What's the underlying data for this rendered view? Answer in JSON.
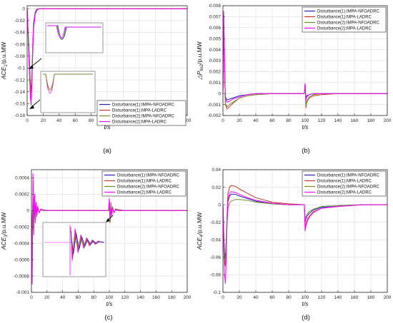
{
  "chart_data": [
    {
      "type": "line",
      "panel_label": "(a)",
      "xlabel": "t/s",
      "ylabel": "ACE",
      "ylabel_sub": "1",
      "ylabel_unit": "/p.u.MW",
      "xlim": [
        0,
        200
      ],
      "ylim": [
        -0.18,
        0.005
      ],
      "xticks": [
        0,
        20,
        40,
        60,
        80,
        100,
        120,
        140,
        160,
        180,
        200
      ],
      "xtick_labels": [
        "0",
        "20",
        "40",
        "60",
        "80",
        "100",
        "120",
        "140",
        "160",
        "180",
        "200"
      ],
      "yticks": [
        0,
        -0.02,
        -0.04,
        -0.06,
        -0.08,
        -0.1,
        -0.12,
        -0.14,
        -0.16,
        -0.18
      ],
      "ytick_labels": [
        "0",
        "-0.02",
        "-0.04",
        "-0.06",
        "-0.08",
        "-0.1",
        "-0.12",
        "-0.14",
        "-0.16",
        "-0.18"
      ],
      "grid": true,
      "legend_position": "bottom-right",
      "series": [
        {
          "name": "Disturbance(1):IMPA-NFOADRC",
          "color": "#1f1fbf",
          "x": [
            0,
            2,
            4,
            5,
            6,
            7,
            8,
            10,
            12,
            15,
            20,
            40,
            60,
            100,
            150,
            200
          ],
          "y": [
            0,
            -0.06,
            -0.125,
            -0.14,
            -0.11,
            -0.06,
            -0.025,
            -0.006,
            -0.001,
            0,
            0,
            0,
            0,
            0,
            0,
            0
          ]
        },
        {
          "name": "Disturbance(1):MPA-LADRC",
          "color": "#c23b22",
          "x": [
            0,
            2,
            4,
            5,
            6,
            7,
            8,
            10,
            12,
            15,
            20,
            40,
            60,
            100,
            150,
            200
          ],
          "y": [
            0,
            -0.065,
            -0.13,
            -0.145,
            -0.115,
            -0.065,
            -0.03,
            -0.008,
            -0.002,
            0,
            0,
            0,
            0,
            0,
            0,
            0
          ]
        },
        {
          "name": "Disturbance(2):IMPA-NFOADRC",
          "color": "#6b8e23",
          "x": [
            0,
            2,
            4,
            5,
            6,
            7,
            8,
            10,
            12,
            15,
            20,
            40,
            60,
            100,
            150,
            200
          ],
          "y": [
            0,
            -0.07,
            -0.14,
            -0.155,
            -0.12,
            -0.07,
            -0.032,
            -0.009,
            -0.002,
            0,
            0,
            0,
            0,
            0,
            0,
            0
          ]
        },
        {
          "name": "Disturbance(2):MPA-LADRC",
          "color": "#ff00ff",
          "x": [
            0,
            2,
            4,
            5,
            6,
            7,
            8,
            10,
            12,
            15,
            20,
            40,
            60,
            100,
            150,
            200
          ],
          "y": [
            0,
            -0.075,
            -0.15,
            -0.163,
            -0.125,
            -0.075,
            -0.035,
            -0.01,
            -0.003,
            0,
            0,
            0,
            0,
            0,
            0,
            0
          ]
        }
      ]
    },
    {
      "type": "line",
      "panel_label": "(b)",
      "xlabel": "t/s",
      "ylabel": "△P",
      "ylabel_sub": "tie2",
      "ylabel_unit": "/p.u.MW",
      "xlim": [
        0,
        200
      ],
      "ylim": [
        -0.002,
        0.008
      ],
      "xticks": [
        0,
        20,
        40,
        60,
        80,
        100,
        120,
        140,
        160,
        180,
        200
      ],
      "xtick_labels": [
        "0",
        "20",
        "40",
        "60",
        "80",
        "100",
        "120",
        "140",
        "160",
        "180",
        "200"
      ],
      "yticks": [
        0.008,
        0.007,
        0.006,
        0.005,
        0.004,
        0.003,
        0.002,
        0.001,
        0,
        -0.001,
        -0.002
      ],
      "ytick_labels": [
        "0.008",
        "0.007",
        "0.006",
        "0.005",
        "0.004",
        "0.003",
        "0.002",
        "0.001",
        "0",
        "-0.001",
        "-0.002"
      ],
      "grid": true,
      "legend_position": "top-right",
      "series": [
        {
          "name": "Disturbance(1):IMPA-NFOADRC",
          "color": "#1f1fbf",
          "x": [
            0,
            1,
            2,
            3,
            5,
            8,
            12,
            20,
            30,
            40,
            60,
            99,
            100,
            101,
            102,
            105,
            110,
            120,
            140,
            200
          ],
          "y": [
            0,
            0.006,
            0.002,
            -0.0003,
            -0.0006,
            -0.0005,
            -0.0004,
            -0.0002,
            -0.0001,
            0,
            0,
            0,
            0.0008,
            -0.0004,
            -0.0002,
            -0.0001,
            0,
            0,
            0,
            0
          ]
        },
        {
          "name": "Disturbance(1):MPA-LADRC",
          "color": "#c23b22",
          "x": [
            0,
            1,
            2,
            3,
            5,
            8,
            12,
            20,
            30,
            40,
            60,
            99,
            100,
            101,
            102,
            105,
            110,
            120,
            140,
            200
          ],
          "y": [
            0,
            0.007,
            0.0025,
            -0.001,
            -0.0014,
            -0.0012,
            -0.0009,
            -0.0004,
            -0.0002,
            -0.0001,
            0,
            0,
            0.0009,
            -0.0013,
            -0.0008,
            -0.0004,
            -0.0002,
            -0.0001,
            0,
            0
          ]
        },
        {
          "name": "Disturbance(2):IMPA-NFOADRC",
          "color": "#6b8e23",
          "x": [
            0,
            1,
            2,
            3,
            5,
            8,
            12,
            20,
            30,
            40,
            60,
            99,
            100,
            101,
            102,
            105,
            110,
            120,
            140,
            200
          ],
          "y": [
            0,
            0.0072,
            0.0025,
            -0.0009,
            -0.0012,
            -0.001,
            -0.0008,
            -0.0004,
            -0.0002,
            -0.0001,
            0,
            0,
            0.0009,
            -0.0011,
            -0.0007,
            -0.0003,
            -0.0001,
            0,
            0,
            0
          ]
        },
        {
          "name": "Disturbance(2):MPA-LADRC",
          "color": "#ff00ff",
          "x": [
            0,
            1,
            2,
            3,
            5,
            8,
            12,
            20,
            30,
            40,
            60,
            99,
            100,
            101,
            102,
            105,
            110,
            120,
            140,
            200
          ],
          "y": [
            0,
            0.0075,
            0.003,
            -0.0005,
            -0.0008,
            -0.0007,
            -0.0005,
            -0.0003,
            -0.0001,
            0,
            0,
            0,
            0.0009,
            -0.0006,
            -0.0003,
            -0.0001,
            0,
            0,
            0,
            0
          ]
        }
      ]
    },
    {
      "type": "line",
      "panel_label": "(c)",
      "xlabel": "t/s",
      "ylabel": "ACE",
      "ylabel_sub": "3",
      "ylabel_unit": "/p.u.MW",
      "xlim": [
        0,
        200
      ],
      "ylim": [
        -0.001,
        0.0005
      ],
      "xticks": [
        0,
        20,
        40,
        60,
        80,
        100,
        120,
        140,
        160,
        180,
        200
      ],
      "xtick_labels": [
        "0",
        "20",
        "40",
        "60",
        "80",
        "100",
        "120",
        "140",
        "160",
        "180",
        "200"
      ],
      "yticks": [
        0.0004,
        0.0002,
        0,
        -0.0002,
        -0.0004,
        -0.0006,
        -0.0008,
        -0.001
      ],
      "ytick_labels": [
        "0.0004",
        "0.0002",
        "0",
        "-0.0002",
        "-0.0004",
        "-0.0006",
        "-0.0008",
        "-0.001"
      ],
      "grid": true,
      "legend_position": "top-right",
      "series": [
        {
          "name": "Disturbance(1):IMPA-NFOADRC",
          "color": "#1f1fbf",
          "x": [
            0,
            1,
            2,
            3,
            4,
            5,
            6,
            7,
            8,
            10,
            12,
            15,
            20,
            30,
            50,
            99,
            100,
            101,
            102,
            103,
            104,
            106,
            108,
            112,
            120,
            200
          ],
          "y": [
            0,
            -0.0004,
            0.0002,
            -0.00015,
            0.0001,
            -8e-05,
            6e-05,
            -4e-05,
            3e-05,
            -2e-05,
            1e-05,
            0,
            0,
            0,
            0,
            0,
            5e-05,
            -8e-05,
            5e-05,
            -4e-05,
            3e-05,
            -2e-05,
            1e-05,
            0,
            0,
            0
          ]
        },
        {
          "name": "Disturbance(1):MPA-LADRC",
          "color": "#c23b22",
          "x": [
            0,
            1,
            2,
            3,
            4,
            5,
            6,
            7,
            8,
            10,
            12,
            15,
            20,
            30,
            50,
            99,
            100,
            101,
            102,
            103,
            104,
            106,
            108,
            112,
            120,
            200
          ],
          "y": [
            0,
            -0.0007,
            0.00035,
            -0.00025,
            0.00018,
            -0.00012,
            9e-05,
            -6e-05,
            4e-05,
            -2e-05,
            1e-05,
            0,
            0,
            0,
            0,
            0,
            0.00012,
            -0.00015,
            0.0001,
            -7e-05,
            5e-05,
            -3e-05,
            2e-05,
            1e-05,
            0,
            0
          ]
        },
        {
          "name": "Disturbance(2):IMPA-NFOADRC",
          "color": "#6b8e23",
          "x": [
            0,
            1,
            2,
            3,
            4,
            5,
            6,
            7,
            8,
            10,
            12,
            15,
            20,
            30,
            50,
            99,
            100,
            101,
            102,
            103,
            104,
            106,
            108,
            112,
            120,
            200
          ],
          "y": [
            0,
            -0.0006,
            0.0003,
            -0.0002,
            0.00015,
            -0.0001,
            7e-05,
            -5e-05,
            3e-05,
            -2e-05,
            1e-05,
            0,
            0,
            0,
            0,
            0,
            0.0001,
            -0.00013,
            8e-05,
            -6e-05,
            4e-05,
            -2e-05,
            1e-05,
            0,
            0,
            0
          ]
        },
        {
          "name": "Disturbance(2):MPA-LADRC",
          "color": "#ff00ff",
          "x": [
            0,
            1,
            2,
            3,
            4,
            5,
            6,
            7,
            8,
            10,
            12,
            15,
            20,
            30,
            50,
            99,
            100,
            101,
            102,
            103,
            104,
            106,
            108,
            112,
            120,
            200
          ],
          "y": [
            0,
            -0.0009,
            0.00045,
            -0.0003,
            0.0002,
            -0.00015,
            0.0001,
            -7e-05,
            5e-05,
            -3e-05,
            2e-05,
            1e-05,
            0,
            0,
            0,
            0,
            0.00015,
            -0.0001,
            7e-05,
            -5e-05,
            3e-05,
            -2e-05,
            1e-05,
            0,
            0,
            0
          ]
        }
      ]
    },
    {
      "type": "line",
      "panel_label": "(d)",
      "xlabel": "t/s",
      "ylabel": "ACE",
      "ylabel_sub": "4",
      "ylabel_unit": "/p.u.MW",
      "xlim": [
        0,
        200
      ],
      "ylim": [
        -0.1,
        0.04
      ],
      "xticks": [
        0,
        20,
        40,
        60,
        80,
        100,
        120,
        140,
        160,
        180,
        200
      ],
      "xtick_labels": [
        "0",
        "20",
        "40",
        "60",
        "80",
        "100",
        "120",
        "140",
        "160",
        "180",
        "200"
      ],
      "yticks": [
        0.04,
        0.02,
        0,
        -0.02,
        -0.04,
        -0.06,
        -0.08,
        -0.1
      ],
      "ytick_labels": [
        "0.04",
        "0.02",
        "0",
        "-0.02",
        "-0.04",
        "-0.06",
        "-0.08",
        "-0.1"
      ],
      "grid": true,
      "legend_position": "top-right",
      "series": [
        {
          "name": "Disturbance(1):IMPA-NFOADRC",
          "color": "#1f1fbf",
          "x": [
            0,
            1,
            2,
            3,
            4,
            5,
            6,
            8,
            10,
            15,
            20,
            30,
            40,
            60,
            80,
            99,
            100,
            101,
            103,
            106,
            110,
            120,
            140,
            170,
            200
          ],
          "y": [
            0,
            -0.03,
            -0.055,
            -0.06,
            -0.04,
            -0.015,
            0.003,
            0.01,
            0.012,
            0.012,
            0.01,
            0.007,
            0.004,
            0.001,
            0,
            0,
            -0.02,
            -0.016,
            -0.012,
            -0.009,
            -0.006,
            -0.003,
            -0.001,
            0,
            0
          ]
        },
        {
          "name": "Disturbance(1):MPA-LADRC",
          "color": "#c23b22",
          "x": [
            0,
            1,
            2,
            3,
            4,
            5,
            6,
            8,
            10,
            15,
            20,
            30,
            40,
            60,
            80,
            99,
            100,
            101,
            103,
            106,
            110,
            120,
            140,
            170,
            200
          ],
          "y": [
            0,
            -0.04,
            -0.065,
            -0.07,
            -0.045,
            -0.01,
            0.012,
            0.02,
            0.022,
            0.021,
            0.018,
            0.013,
            0.008,
            0.003,
            0.001,
            0,
            -0.028,
            -0.022,
            -0.016,
            -0.012,
            -0.008,
            -0.004,
            -0.002,
            0,
            0
          ]
        },
        {
          "name": "Disturbance(2):IMPA-NFOADRC",
          "color": "#6b8e23",
          "x": [
            0,
            1,
            2,
            3,
            4,
            5,
            6,
            8,
            10,
            15,
            20,
            30,
            40,
            60,
            80,
            99,
            100,
            101,
            103,
            106,
            110,
            120,
            140,
            170,
            200
          ],
          "y": [
            0,
            -0.035,
            -0.06,
            -0.065,
            -0.045,
            -0.02,
            -0.005,
            0.002,
            0.004,
            0.006,
            0.006,
            0.005,
            0.003,
            0.001,
            0,
            0,
            -0.018,
            -0.014,
            -0.01,
            -0.007,
            -0.005,
            -0.002,
            -0.001,
            0,
            0
          ]
        },
        {
          "name": "Disturbance(2):MPA-LADRC",
          "color": "#ff00ff",
          "x": [
            0,
            1,
            2,
            3,
            4,
            5,
            6,
            8,
            10,
            15,
            20,
            30,
            40,
            60,
            80,
            99,
            100,
            101,
            103,
            106,
            110,
            120,
            140,
            170,
            200
          ],
          "y": [
            0,
            -0.05,
            -0.08,
            -0.09,
            -0.06,
            -0.02,
            0.005,
            0.013,
            0.015,
            0.014,
            0.012,
            0.008,
            0.005,
            0.002,
            0,
            0,
            -0.03,
            -0.024,
            -0.018,
            -0.013,
            -0.009,
            -0.004,
            -0.002,
            0,
            0
          ]
        }
      ]
    }
  ]
}
